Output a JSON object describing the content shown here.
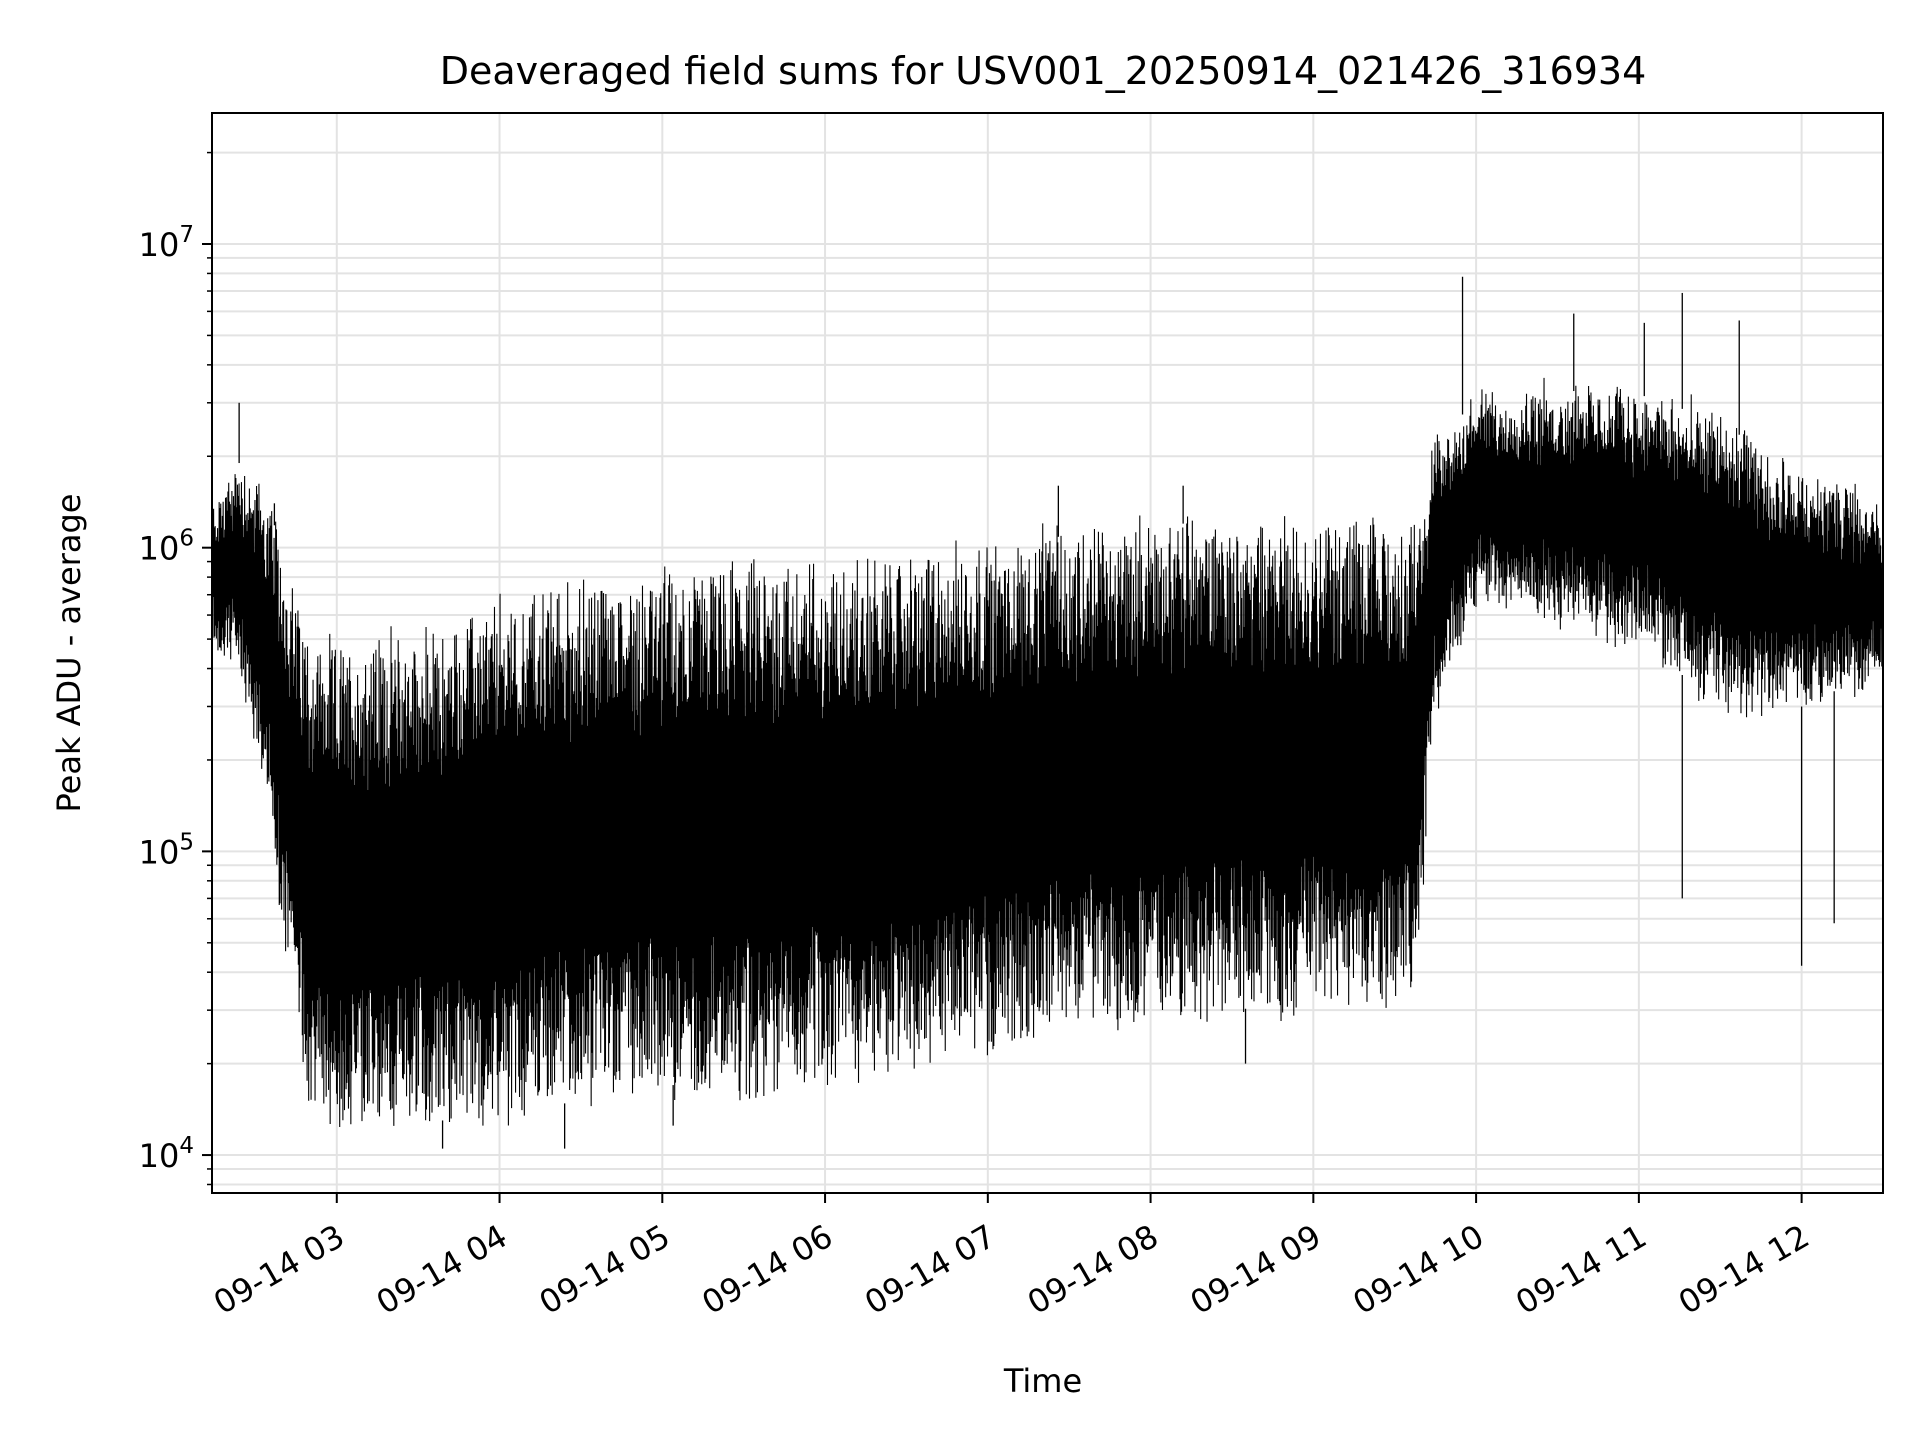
{
  "chart_data": {
    "type": "line",
    "title": "Deaveraged field sums for USV001_20250914_021426_316934",
    "xlabel": "Time",
    "ylabel": "Peak ADU - average",
    "yscale": "log",
    "grid": true,
    "xlim": [
      "2025-09-14 02:14",
      "2025-09-14 12:30"
    ],
    "ylim": [
      7500,
      27000000
    ],
    "x_tick_labels": [
      "09-14 03",
      "09-14 04",
      "09-14 05",
      "09-14 06",
      "09-14 07",
      "09-14 08",
      "09-14 09",
      "09-14 10",
      "09-14 11",
      "09-14 12"
    ],
    "y_tick_labels": [
      {
        "base": "10",
        "exp": "4",
        "value": 10000
      },
      {
        "base": "10",
        "exp": "5",
        "value": 100000
      },
      {
        "base": "10",
        "exp": "6",
        "value": 1000000
      },
      {
        "base": "10",
        "exp": "7",
        "value": 10000000
      }
    ],
    "line_color": "#000000",
    "series": [
      {
        "envelope": [
          {
            "t": "2025-09-14 02:14",
            "high": 1300000,
            "low": 500000
          },
          {
            "t": "2025-09-14 02:24",
            "high": 1900000,
            "low": 400000
          },
          {
            "t": "2025-09-14 02:34",
            "high": 1500000,
            "low": 150000
          },
          {
            "t": "2025-09-14 02:42",
            "high": 800000,
            "low": 40000
          },
          {
            "t": "2025-09-14 02:50",
            "high": 500000,
            "low": 15000
          },
          {
            "t": "2025-09-14 03:00",
            "high": 450000,
            "low": 13000
          },
          {
            "t": "2025-09-14 03:20",
            "high": 500000,
            "low": 13000
          },
          {
            "t": "2025-09-14 03:40",
            "high": 500000,
            "low": 13000
          },
          {
            "t": "2025-09-14 04:00",
            "high": 650000,
            "low": 14000
          },
          {
            "t": "2025-09-14 04:30",
            "high": 750000,
            "low": 15000
          },
          {
            "t": "2025-09-14 05:00",
            "high": 800000,
            "low": 17000
          },
          {
            "t": "2025-09-14 05:30",
            "high": 850000,
            "low": 17000
          },
          {
            "t": "2025-09-14 06:00",
            "high": 850000,
            "low": 18000
          },
          {
            "t": "2025-09-14 06:30",
            "high": 900000,
            "low": 20000
          },
          {
            "t": "2025-09-14 07:00",
            "high": 1000000,
            "low": 23000
          },
          {
            "t": "2025-09-14 07:30",
            "high": 1100000,
            "low": 28000
          },
          {
            "t": "2025-09-14 08:00",
            "high": 1200000,
            "low": 28000
          },
          {
            "t": "2025-09-14 08:30",
            "high": 1200000,
            "low": 30000
          },
          {
            "t": "2025-09-14 09:00",
            "high": 1200000,
            "low": 32000
          },
          {
            "t": "2025-09-14 09:30",
            "high": 1100000,
            "low": 33000
          },
          {
            "t": "2025-09-14 09:38",
            "high": 1200000,
            "low": 40000
          },
          {
            "t": "2025-09-14 09:45",
            "high": 2300000,
            "low": 300000
          },
          {
            "t": "2025-09-14 10:00",
            "high": 3000000,
            "low": 700000
          },
          {
            "t": "2025-09-14 10:30",
            "high": 3300000,
            "low": 600000
          },
          {
            "t": "2025-09-14 11:00",
            "high": 3200000,
            "low": 500000
          },
          {
            "t": "2025-09-14 11:30",
            "high": 2600000,
            "low": 300000
          },
          {
            "t": "2025-09-14 12:00",
            "high": 1700000,
            "low": 300000
          },
          {
            "t": "2025-09-14 12:30",
            "high": 1300000,
            "low": 400000
          }
        ],
        "spikes": [
          {
            "t": "2025-09-14 02:24",
            "value": 3000000
          },
          {
            "t": "2025-09-14 02:37",
            "value": 1400000
          },
          {
            "t": "2025-09-14 03:39",
            "value": 10500
          },
          {
            "t": "2025-09-14 04:24",
            "value": 10500
          },
          {
            "t": "2025-09-14 05:04",
            "value": 12500
          },
          {
            "t": "2025-09-14 07:26",
            "value": 1600000
          },
          {
            "t": "2025-09-14 08:12",
            "value": 1600000
          },
          {
            "t": "2025-09-14 08:35",
            "value": 20000
          },
          {
            "t": "2025-09-14 09:55",
            "value": 7800000
          },
          {
            "t": "2025-09-14 10:36",
            "value": 5900000
          },
          {
            "t": "2025-09-14 11:02",
            "value": 5500000
          },
          {
            "t": "2025-09-14 11:16",
            "value": 6900000
          },
          {
            "t": "2025-09-14 11:16",
            "value": 70000
          },
          {
            "t": "2025-09-14 11:37",
            "value": 5600000
          },
          {
            "t": "2025-09-14 12:00",
            "value": 42000
          },
          {
            "t": "2025-09-14 12:12",
            "value": 58000
          }
        ]
      }
    ]
  }
}
